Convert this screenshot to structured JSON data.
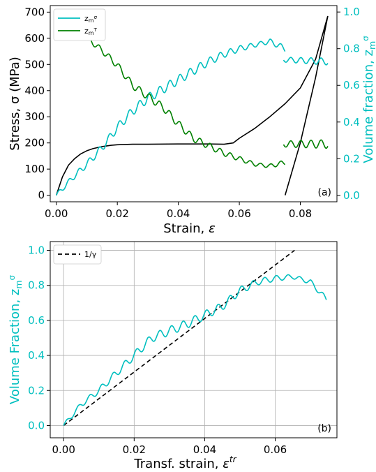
{
  "chart_data": [
    {
      "id": "a",
      "type": "line",
      "panel_label": "(a)",
      "xlabel": "Strain, ε",
      "ylabel": "Stress, σ (MPa)",
      "y2label": "Volume fraction, zmσ",
      "xlim": [
        -0.002,
        0.092
      ],
      "ylim": [
        -25,
        725
      ],
      "y2lim": [
        -0.035,
        1.035
      ],
      "xticks": [
        0.0,
        0.02,
        0.04,
        0.06,
        0.08
      ],
      "xtick_labels": [
        "0.00",
        "0.02",
        "0.04",
        "0.06",
        "0.08"
      ],
      "yticks": [
        0,
        100,
        200,
        300,
        400,
        500,
        600,
        700
      ],
      "ytick_labels": [
        "0",
        "100",
        "200",
        "300",
        "400",
        "500",
        "600",
        "700"
      ],
      "y2ticks": [
        0.0,
        0.2,
        0.4,
        0.6,
        0.8,
        1.0
      ],
      "y2tick_labels": [
        "0.0",
        "0.2",
        "0.4",
        "0.6",
        "0.8",
        "1.0"
      ],
      "grid": false,
      "legend_position": "top-left",
      "legend": [
        {
          "label": "zmσ",
          "color": "#00bfbf"
        },
        {
          "label": "zmT",
          "color": "#008000"
        }
      ],
      "series": [
        {
          "name": "Stress",
          "axis": "left",
          "color": "#000000",
          "x": [
            0.0,
            0.002,
            0.004,
            0.006,
            0.008,
            0.01,
            0.012,
            0.015,
            0.018,
            0.02,
            0.025,
            0.03,
            0.04,
            0.05,
            0.055,
            0.058,
            0.06,
            0.065,
            0.07,
            0.075,
            0.08,
            0.085,
            0.089
          ],
          "y": [
            0,
            70,
            115,
            140,
            158,
            170,
            178,
            186,
            191,
            193,
            195,
            195,
            196,
            196,
            195,
            200,
            218,
            255,
            300,
            350,
            410,
            520,
            685
          ]
        },
        {
          "name": "Stress (unloading)",
          "axis": "left",
          "color": "#000000",
          "x": [
            0.089,
            0.085,
            0.08,
            0.0775,
            0.075
          ],
          "y": [
            685,
            450,
            200,
            100,
            0
          ]
        },
        {
          "name": "zmσ",
          "axis": "right",
          "color": "#00bfbf",
          "x": [
            0.0,
            0.005,
            0.01,
            0.015,
            0.02,
            0.025,
            0.03,
            0.035,
            0.04,
            0.045,
            0.05,
            0.055,
            0.06,
            0.065,
            0.07,
            0.075
          ],
          "y": [
            0.0,
            0.09,
            0.17,
            0.26,
            0.37,
            0.46,
            0.53,
            0.58,
            0.63,
            0.68,
            0.73,
            0.77,
            0.8,
            0.82,
            0.84,
            0.8
          ],
          "osc_amp": 0.025
        },
        {
          "name": "zmσ (branch)",
          "axis": "right",
          "color": "#00bfbf",
          "x": [
            0.0745,
            0.089
          ],
          "y": [
            0.74,
            0.73
          ],
          "osc_amp": 0.02
        },
        {
          "name": "zmT",
          "axis": "right",
          "color": "#008000",
          "x": [
            0.0,
            0.005,
            0.01,
            0.015,
            0.02,
            0.025,
            0.03,
            0.035,
            0.04,
            0.045,
            0.05,
            0.055,
            0.06,
            0.065,
            0.07,
            0.075
          ],
          "y": [
            1.0,
            0.93,
            0.86,
            0.79,
            0.71,
            0.6,
            0.54,
            0.48,
            0.39,
            0.31,
            0.27,
            0.23,
            0.2,
            0.17,
            0.16,
            0.18
          ],
          "osc_amp": 0.02
        },
        {
          "name": "zmT (branch)",
          "axis": "right",
          "color": "#008000",
          "x": [
            0.0745,
            0.089
          ],
          "y": [
            0.28,
            0.28
          ],
          "osc_amp": 0.025
        }
      ]
    },
    {
      "id": "b",
      "type": "line",
      "panel_label": "(b)",
      "xlabel": "Transf. strain, εtr",
      "ylabel": "Volume Fraction, zmσ",
      "xlim": [
        -0.0038,
        0.0775
      ],
      "ylim": [
        -0.07,
        1.05
      ],
      "xticks": [
        0.0,
        0.02,
        0.04,
        0.06
      ],
      "xtick_labels": [
        "0.00",
        "0.02",
        "0.04",
        "0.06"
      ],
      "yticks": [
        0.0,
        0.2,
        0.4,
        0.6,
        0.8,
        1.0
      ],
      "ytick_labels": [
        "0.0",
        "0.2",
        "0.4",
        "0.6",
        "0.8",
        "1.0"
      ],
      "grid": true,
      "legend_position": "top-left",
      "legend": [
        {
          "label": "1/γ",
          "color": "#000000"
        }
      ],
      "series": [
        {
          "name": "1/γ",
          "color": "#000000",
          "dashed": true,
          "x": [
            0.0,
            0.0655
          ],
          "y": [
            0.0,
            1.0
          ]
        },
        {
          "name": "zmσ",
          "color": "#00bfbf",
          "x": [
            0.0,
            0.005,
            0.01,
            0.015,
            0.02,
            0.025,
            0.03,
            0.035,
            0.04,
            0.045,
            0.05,
            0.055,
            0.06,
            0.065,
            0.07,
            0.0745
          ],
          "y": [
            0.0,
            0.12,
            0.2,
            0.3,
            0.4,
            0.5,
            0.54,
            0.58,
            0.63,
            0.68,
            0.77,
            0.82,
            0.84,
            0.85,
            0.82,
            0.72
          ],
          "osc_amp": 0.025
        }
      ]
    }
  ]
}
